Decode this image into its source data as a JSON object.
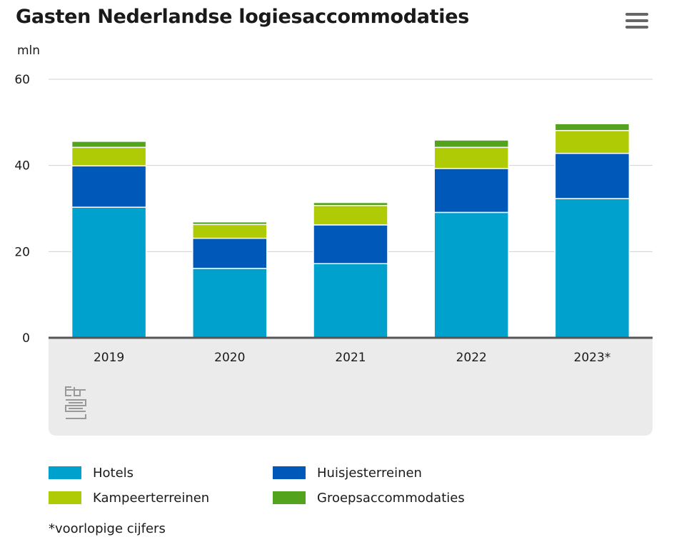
{
  "header": {
    "title": "Gasten Nederlandse logiesaccommodaties",
    "menu_icon": "hamburger-menu-icon"
  },
  "chart_data": {
    "type": "bar",
    "stacked": true,
    "unit_label": "mln",
    "categories": [
      "2019",
      "2020",
      "2021",
      "2022",
      "2023*"
    ],
    "series": [
      {
        "name": "Hotels",
        "color": "#00a1cd",
        "values": [
          30.3,
          16.1,
          17.2,
          29.1,
          32.3
        ]
      },
      {
        "name": "Huisjesterreinen",
        "color": "#0058b8",
        "values": [
          9.6,
          7.0,
          9.0,
          10.2,
          10.5
        ]
      },
      {
        "name": "Kampeerterreinen",
        "color": "#afcb05",
        "values": [
          4.3,
          3.2,
          4.5,
          4.9,
          5.3
        ]
      },
      {
        "name": "Groepsaccommodaties",
        "color": "#53a31d",
        "values": [
          1.4,
          0.6,
          0.7,
          1.7,
          1.6
        ]
      }
    ],
    "yticks": [
      0,
      20,
      40,
      60
    ],
    "ylim": [
      0,
      60
    ],
    "grid": true,
    "legend_position": "bottom"
  },
  "logo": {
    "name": "cbs-logo"
  },
  "footnote": "*voorlopige cijfers"
}
